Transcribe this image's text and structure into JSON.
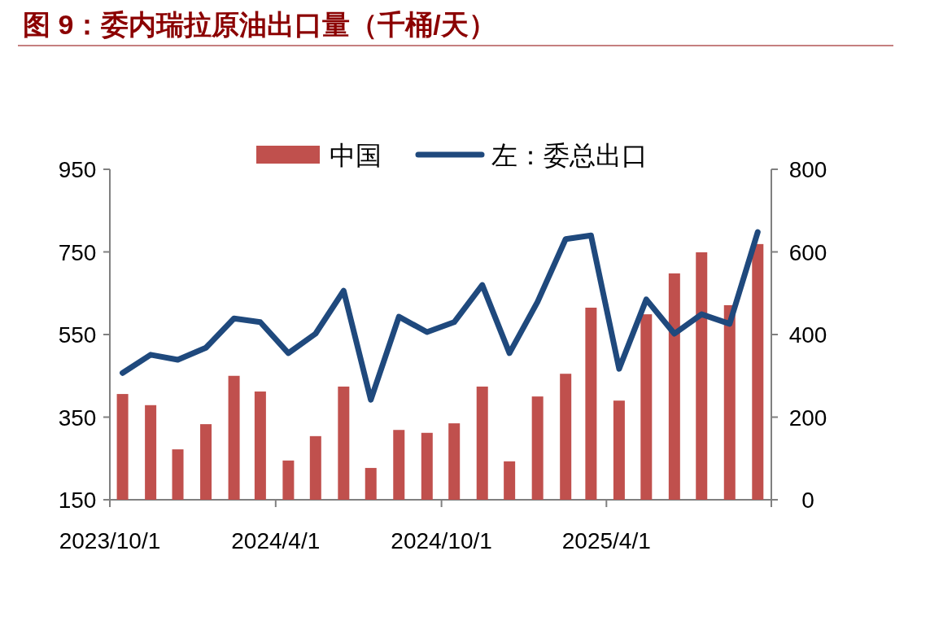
{
  "chart_data": {
    "type": "bar",
    "title": "图 9：委内瑞拉原油出口量（千桶/天）",
    "legend": "top",
    "x": [
      "2023-10-15",
      "2023-11-15",
      "2023-12-15",
      "2024-01-15",
      "2024-02-15",
      "2024-03-15",
      "2024-04-15",
      "2024-05-15",
      "2024-06-15",
      "2024-07-15",
      "2024-08-15",
      "2024-09-15",
      "2024-10-15",
      "2024-11-15",
      "2024-12-15",
      "2025-01-15",
      "2025-02-15",
      "2025-03-15",
      "2025-04-15",
      "2025-05-15",
      "2025-06-15",
      "2025-07-15",
      "2025-08-15",
      "2025-09-15"
    ],
    "series": [
      {
        "name": "中国",
        "axis": "y2",
        "color": "#c0504d",
        "values": [
          256,
          229,
          122,
          183,
          300,
          262,
          95,
          154,
          274,
          77,
          169,
          162,
          185,
          274,
          93,
          250,
          305,
          465,
          240,
          449,
          548,
          599,
          471,
          619
        ]
      },
      {
        "name": "左：委总出口",
        "type": "line",
        "color": "#1f497d",
        "values": [
          457,
          501,
          489,
          518,
          589,
          580,
          505,
          552,
          656,
          392,
          593,
          556,
          580,
          670,
          505,
          629,
          781,
          790,
          467,
          635,
          552,
          599,
          576,
          798
        ]
      }
    ],
    "xlim": [
      "2023-10-01",
      "2025-09-30"
    ],
    "xticks": [
      {
        "value": "2023-10-01",
        "label": "2023/10/1"
      },
      {
        "value": "2024-04-01",
        "label": "2024/4/1"
      },
      {
        "value": "2024-10-01",
        "label": "2024/10/1"
      },
      {
        "value": "2025-04-01",
        "label": "2025/4/1"
      }
    ],
    "ylim": [
      150,
      950
    ],
    "yticks": [
      150,
      350,
      550,
      750,
      950
    ],
    "y2lim": [
      0,
      800
    ],
    "y2ticks": [
      0,
      200,
      400,
      600,
      800
    ]
  }
}
